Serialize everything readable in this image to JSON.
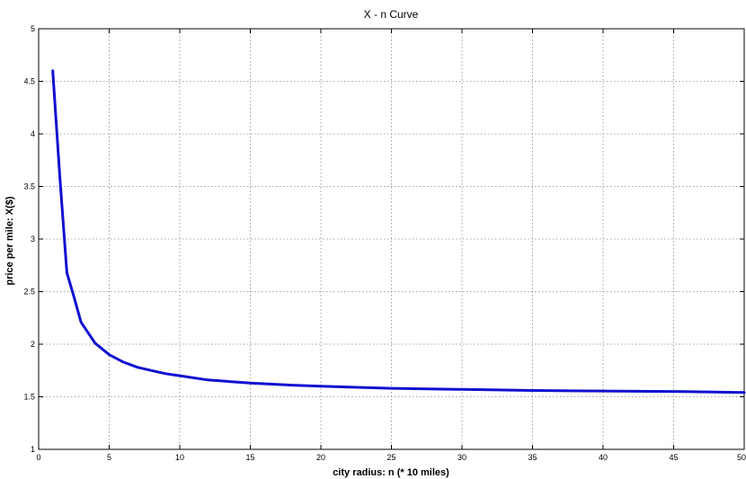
{
  "chart_data": {
    "type": "line",
    "title": "X - n Curve",
    "xlabel": "city radius: n (* 10 miles)",
    "ylabel": "price per mile: X($)",
    "xlim": [
      0,
      50
    ],
    "ylim": [
      1,
      5
    ],
    "xticks": [
      0,
      5,
      10,
      15,
      20,
      25,
      30,
      35,
      40,
      45,
      50
    ],
    "yticks": [
      1,
      1.5,
      2,
      2.5,
      3,
      3.5,
      4,
      4.5,
      5
    ],
    "xtick_labels": [
      "0",
      "5",
      "10",
      "15",
      "20",
      "25",
      "30",
      "35",
      "40",
      "45",
      "50"
    ],
    "ytick_labels": [
      "1",
      "1.5",
      "2",
      "2.5",
      "3",
      "3.5",
      "4",
      "4.5",
      "5"
    ],
    "grid": true,
    "series": [
      {
        "color": "#1010d0",
        "x": [
          1,
          1.5,
          2,
          2.5,
          3,
          4,
          5,
          6,
          7,
          8,
          9,
          10,
          12,
          15,
          18,
          20,
          25,
          30,
          35,
          40,
          45,
          50
        ],
        "y": [
          4.6,
          3.6,
          2.68,
          2.45,
          2.21,
          2.01,
          1.9,
          1.83,
          1.78,
          1.75,
          1.72,
          1.7,
          1.66,
          1.63,
          1.61,
          1.6,
          1.58,
          1.57,
          1.56,
          1.555,
          1.55,
          1.54
        ]
      }
    ]
  }
}
